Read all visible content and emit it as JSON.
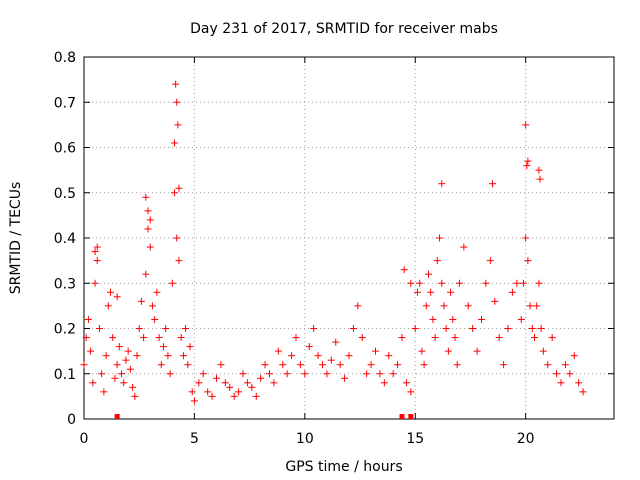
{
  "chart_data": {
    "type": "scatter",
    "title": "Day 231 of 2017, SRMTID for receiver mabs",
    "xlabel": "GPS time / hours",
    "ylabel": "SRMTID / TECUs",
    "xlim": [
      0,
      24
    ],
    "ylim": [
      0,
      0.8
    ],
    "grid": true,
    "legend": "none",
    "marker": "+",
    "marker_color": "#ff0000",
    "x_ticks": [
      0,
      5,
      10,
      15,
      20
    ],
    "x_tick_labels": [
      "0",
      "5",
      "10",
      "15",
      "20"
    ],
    "y_ticks": [
      0,
      0.1,
      0.2,
      0.3,
      0.4,
      0.5,
      0.6,
      0.7,
      0.8
    ],
    "y_tick_labels": [
      "0",
      "0.1",
      "0.2",
      "0.3",
      "0.4",
      "0.5",
      "0.6",
      "0.7",
      "0.8"
    ],
    "series": [
      {
        "name": "SRMTID",
        "x": [
          0.0,
          0.1,
          0.2,
          0.3,
          0.4,
          0.5,
          0.6,
          0.7,
          0.8,
          0.9,
          1.0,
          1.1,
          1.2,
          1.3,
          1.4,
          1.5,
          1.6,
          1.7,
          1.8,
          1.9,
          2.0,
          2.1,
          2.2,
          2.3,
          2.4,
          2.5,
          2.6,
          2.7,
          2.8,
          2.9,
          3.0,
          3.1,
          3.2,
          3.3,
          3.4,
          3.5,
          3.6,
          3.7,
          3.8,
          3.9,
          4.0,
          4.1,
          4.2,
          4.3,
          4.4,
          4.5,
          4.6,
          4.7,
          4.8,
          4.9,
          5.0,
          5.2,
          5.4,
          5.6,
          5.8,
          6.0,
          6.2,
          6.4,
          6.6,
          6.8,
          7.0,
          7.2,
          7.4,
          7.6,
          7.8,
          8.0,
          8.2,
          8.4,
          8.6,
          8.8,
          9.0,
          9.2,
          9.4,
          9.6,
          9.8,
          10.0,
          10.2,
          10.4,
          10.6,
          10.8,
          11.0,
          11.2,
          11.4,
          11.6,
          11.8,
          12.0,
          12.2,
          12.4,
          12.6,
          12.8,
          13.0,
          13.2,
          13.4,
          13.6,
          13.8,
          14.0,
          14.2,
          14.4,
          14.6,
          14.8,
          15.0,
          15.1,
          15.2,
          15.3,
          15.4,
          15.5,
          15.6,
          15.7,
          15.8,
          15.9,
          16.0,
          16.1,
          16.2,
          16.3,
          16.4,
          16.5,
          16.6,
          16.7,
          16.8,
          16.9,
          17.0,
          17.2,
          17.4,
          17.6,
          17.8,
          18.0,
          18.2,
          18.4,
          18.6,
          18.8,
          19.0,
          19.2,
          19.4,
          19.6,
          19.8,
          19.9,
          20.0,
          20.1,
          20.2,
          20.3,
          20.4,
          20.5,
          20.6,
          20.7,
          20.8,
          21.0,
          21.2,
          21.4,
          21.6,
          21.8,
          22.0,
          22.2,
          22.4,
          22.6,
          4.1,
          4.15,
          4.2,
          4.25,
          4.3,
          20.0,
          20.05,
          20.1,
          20.6,
          20.65,
          2.8,
          2.9,
          3.0,
          16.2,
          18.5,
          0.5,
          0.6,
          1.5,
          14.5,
          14.8
        ],
        "y": [
          0.12,
          0.18,
          0.22,
          0.15,
          0.08,
          0.3,
          0.35,
          0.2,
          0.1,
          0.06,
          0.14,
          0.25,
          0.28,
          0.18,
          0.09,
          0.12,
          0.16,
          0.1,
          0.08,
          0.13,
          0.15,
          0.11,
          0.07,
          0.05,
          0.14,
          0.2,
          0.26,
          0.18,
          0.32,
          0.42,
          0.38,
          0.25,
          0.22,
          0.28,
          0.18,
          0.12,
          0.16,
          0.2,
          0.14,
          0.1,
          0.3,
          0.5,
          0.4,
          0.35,
          0.18,
          0.14,
          0.2,
          0.12,
          0.16,
          0.06,
          0.04,
          0.08,
          0.1,
          0.06,
          0.05,
          0.09,
          0.12,
          0.08,
          0.07,
          0.05,
          0.06,
          0.1,
          0.08,
          0.07,
          0.05,
          0.09,
          0.12,
          0.1,
          0.08,
          0.15,
          0.12,
          0.1,
          0.14,
          0.18,
          0.12,
          0.1,
          0.16,
          0.2,
          0.14,
          0.12,
          0.1,
          0.13,
          0.17,
          0.12,
          0.09,
          0.14,
          0.2,
          0.25,
          0.18,
          0.1,
          0.12,
          0.15,
          0.1,
          0.08,
          0.14,
          0.1,
          0.12,
          0.18,
          0.08,
          0.06,
          0.2,
          0.28,
          0.3,
          0.15,
          0.12,
          0.25,
          0.32,
          0.28,
          0.22,
          0.18,
          0.35,
          0.4,
          0.3,
          0.25,
          0.2,
          0.15,
          0.28,
          0.22,
          0.18,
          0.12,
          0.3,
          0.38,
          0.25,
          0.2,
          0.15,
          0.22,
          0.3,
          0.35,
          0.26,
          0.18,
          0.12,
          0.2,
          0.28,
          0.3,
          0.22,
          0.3,
          0.4,
          0.35,
          0.25,
          0.2,
          0.18,
          0.25,
          0.3,
          0.2,
          0.15,
          0.12,
          0.18,
          0.1,
          0.08,
          0.12,
          0.1,
          0.14,
          0.08,
          0.06,
          0.61,
          0.74,
          0.7,
          0.65,
          0.51,
          0.65,
          0.56,
          0.57,
          0.55,
          0.53,
          0.49,
          0.46,
          0.44,
          0.52,
          0.52,
          0.37,
          0.38,
          0.27,
          0.33,
          0.3
        ]
      }
    ],
    "near_zero_markers_x": [
      1.5,
      14.4,
      14.8
    ]
  }
}
